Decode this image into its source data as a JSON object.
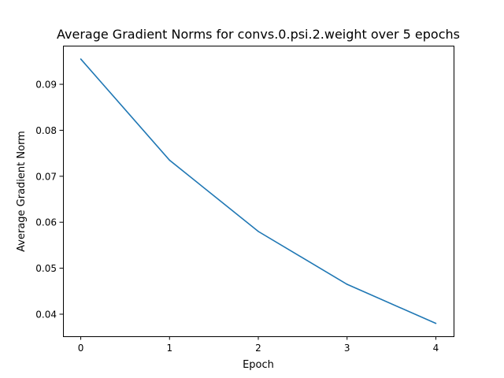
{
  "chart_data": {
    "type": "line",
    "title": "Average Gradient Norms for convs.0.psi.2.weight over 5 epochs",
    "xlabel": "Epoch",
    "ylabel": "Average Gradient Norm",
    "x": [
      0,
      1,
      2,
      3,
      4
    ],
    "series": [
      {
        "values": [
          0.0955,
          0.0735,
          0.058,
          0.0465,
          0.038
        ],
        "color": "#1f77b4"
      }
    ],
    "xlim": [
      -0.2,
      4.2
    ],
    "ylim": [
      0.0352,
      0.0984
    ],
    "xticks": [
      0,
      1,
      2,
      3,
      4
    ],
    "xtick_labels": [
      "0",
      "1",
      "2",
      "3",
      "4"
    ],
    "yticks": [
      0.04,
      0.05,
      0.06,
      0.07,
      0.08,
      0.09
    ],
    "ytick_labels": [
      "0.04",
      "0.05",
      "0.06",
      "0.07",
      "0.08",
      "0.09"
    ],
    "grid": false,
    "legend": "none"
  }
}
